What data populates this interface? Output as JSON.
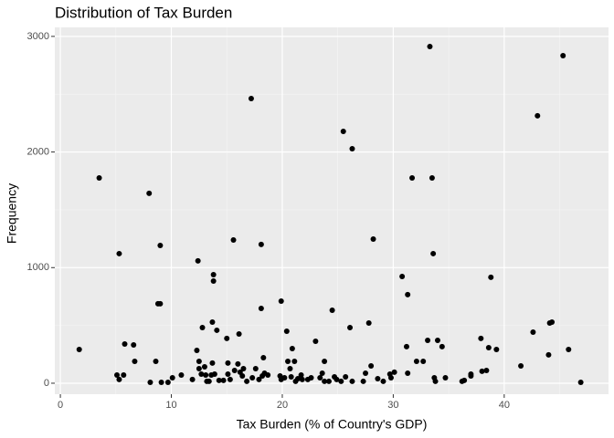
{
  "chart_data": {
    "type": "scatter",
    "title": "Distribution of Tax Burden",
    "xlabel": "Tax Burden (% of Country's GDP)",
    "ylabel": "Frequency",
    "x": [
      1.7,
      3.5,
      5.3,
      5.1,
      5.3,
      5.7,
      5.8,
      6.6,
      6.7,
      8.0,
      8.1,
      8.6,
      9.0,
      8.8,
      9.0,
      9.1,
      9.7,
      10.1,
      10.9,
      11.9,
      12.4,
      12.3,
      12.5,
      12.5,
      12.7,
      12.8,
      13.0,
      13.1,
      13.2,
      13.4,
      13.6,
      13.7,
      13.7,
      13.8,
      13.8,
      14.1,
      13.9,
      14.3,
      14.7,
      15.0,
      15.1,
      15.1,
      15.3,
      15.6,
      15.7,
      16.0,
      16.1,
      16.2,
      16.4,
      16.5,
      16.8,
      17.2,
      17.3,
      17.6,
      17.9,
      18.1,
      18.1,
      18.2,
      18.3,
      18.4,
      18.7,
      19.8,
      19.9,
      19.9,
      20.2,
      20.4,
      20.5,
      20.7,
      20.8,
      20.9,
      21.1,
      21.2,
      21.4,
      21.7,
      21.8,
      22.3,
      22.6,
      23.0,
      23.4,
      23.6,
      23.8,
      23.8,
      24.2,
      24.5,
      24.7,
      24.9,
      25.3,
      25.5,
      25.7,
      26.1,
      26.3,
      26.3,
      27.3,
      27.5,
      27.8,
      28.0,
      28.2,
      28.6,
      29.1,
      29.8,
      30.1,
      30.8,
      31.3,
      31.2,
      31.3,
      31.7,
      32.1,
      32.7,
      33.1,
      33.3,
      33.5,
      33.6,
      33.7,
      33.8,
      34.0,
      34.4,
      34.7,
      36.2,
      37.0,
      37.0,
      37.9,
      38.0,
      38.4,
      38.6,
      38.8,
      39.3,
      41.5,
      42.6,
      43.0,
      44.0,
      44.1,
      44.3,
      45.3,
      45.8,
      46.9,
      36.4,
      29.7
    ],
    "values": [
      292,
      1776,
      1121,
      71,
      32,
      71,
      339,
      331,
      189,
      1642,
      8,
      189,
      1192,
      687,
      687,
      8,
      8,
      47,
      71,
      32,
      1058,
      284,
      189,
      126,
      79,
      481,
      142,
      71,
      16,
      16,
      71,
      174,
      529,
      939,
      884,
      458,
      79,
      24,
      24,
      387,
      174,
      79,
      32,
      1239,
      110,
      166,
      426,
      95,
      63,
      126,
      16,
      2462,
      47,
      126,
      32,
      1200,
      647,
      63,
      221,
      87,
      71,
      63,
      710,
      32,
      47,
      450,
      189,
      126,
      55,
      300,
      189,
      16,
      39,
      71,
      32,
      32,
      47,
      363,
      47,
      87,
      189,
      16,
      16,
      631,
      55,
      32,
      16,
      2178,
      55,
      481,
      2028,
      16,
      16,
      87,
      521,
      150,
      1247,
      39,
      16,
      47,
      95,
      923,
      766,
      316,
      87,
      1776,
      189,
      189,
      371,
      2912,
      1776,
      1121,
      47,
      16,
      371,
      316,
      47,
      16,
      63,
      79,
      387,
      103,
      110,
      308,
      916,
      292,
      150,
      442,
      2313,
      245,
      521,
      529,
      2833,
      292,
      8,
      24,
      79
    ],
    "color": "#000000",
    "xlim": [
      -0.5,
      49.4
    ],
    "xticks": [
      0,
      10,
      20,
      30,
      40
    ],
    "xminor": [
      5,
      15,
      25,
      35,
      45
    ],
    "ylim": [
      -95,
      3078
    ],
    "yticks": [
      0,
      1000,
      2000,
      3000
    ],
    "yminor": [
      500,
      1500,
      2500
    ],
    "grid": true
  }
}
